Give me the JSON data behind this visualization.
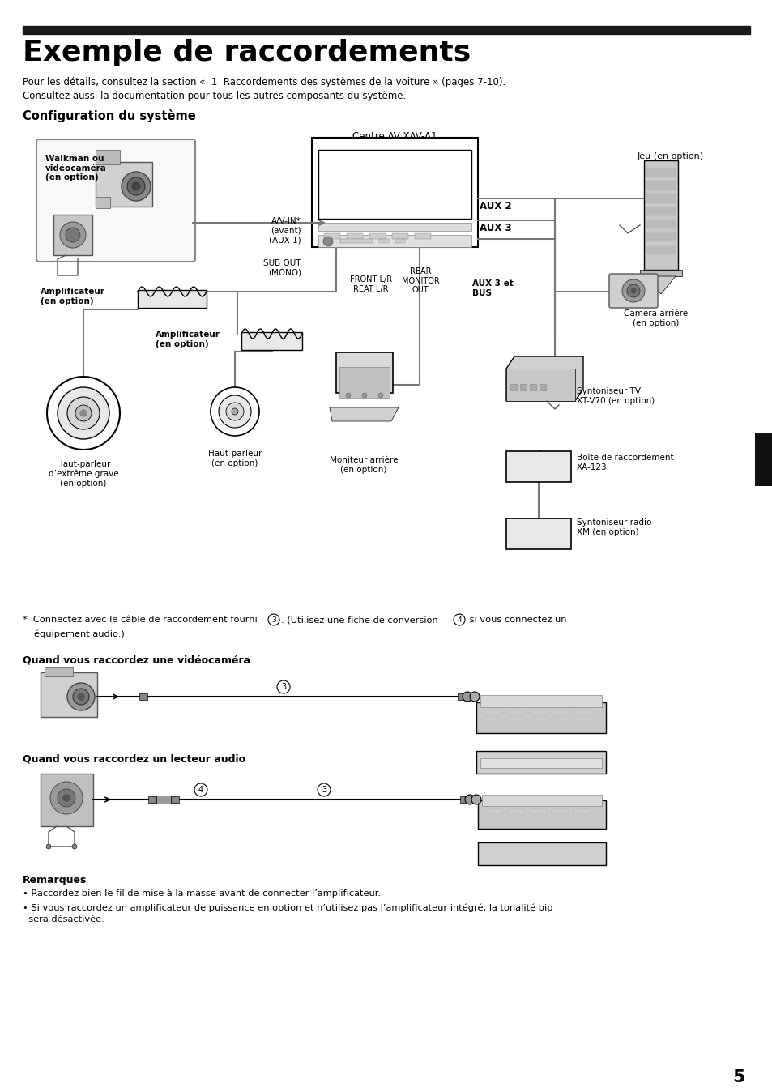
{
  "title": "Exemple de raccordements",
  "top_bar_color": "#1a1a1a",
  "background_color": "#ffffff",
  "title_fontsize": 26,
  "body_text_1": "Pour les détails, consultez la section «  1  Raccordements des systèmes de la voiture » (pages 7-10).",
  "body_text_2": "Consultez aussi la documentation pour tous les autres composants du système.",
  "section_title": "Configuration du système",
  "centre_av_label": "Centre AV XAV-A1",
  "jeu_label": "Jeu (en option)",
  "walkman_label": "Walkman ou\nvidéocaméra\n(en option)",
  "avIn_label": "A/V-IN*\n(avant)\n(AUX 1)",
  "aux2_label": "AUX 2",
  "subout_label": "SUB OUT\n(MONO)",
  "aux3_label": "AUX 3",
  "front_label": "FRONT L/R\nREAT L/R",
  "rear_label": "REAR\nMONITOR\nOUT",
  "aux3bus_label": "AUX 3 et\nBUS",
  "camera_label": "Caméra arrière\n(en option)",
  "amp1_label": "Amplificateur\n(en option)",
  "amp2_label": "Amplificateur\n(en option)",
  "syntv_label": "Syntoniseur TV\nXT-V70 (en option)",
  "boite_label": "Boîte de raccordement\nXA-123",
  "synrad_label": "Syntoniseur radio\nXM (en option)",
  "hpgrave_label": "Haut-parleur\nd’extrême grave\n(en option)",
  "hpopt_label": "Haut-parleur\n(en option)",
  "moniteur_label": "Moniteur arrière\n(en option)",
  "footnote_star": "*  Connectez avec le câble de raccordement fourni ",
  "footnote_3": "3",
  "footnote_mid": ". (Utilisez une fiche de conversion ",
  "footnote_4": "4",
  "footnote_end": " si vous connectez un",
  "footnote_line2": "équipement audio.)",
  "quand_video": "Quand vous raccordez une vidéocaméra",
  "quand_audio": "Quand vous raccordez un lecteur audio",
  "remarques_title": "Remarques",
  "remarque1": "• Raccordez bien le fil de mise à la masse avant de connecter l’amplificateur.",
  "remarque2": "• Si vous raccordez un amplificateur de puissance en option et n’utilisez pas l’amplificateur intégré, la tonalité bip",
  "remarque2b": "  sera désactivée.",
  "page_number": "5",
  "gray_line": "#888888",
  "dark_gray": "#555555",
  "light_gray": "#cccccc",
  "med_gray": "#aaaaaa"
}
